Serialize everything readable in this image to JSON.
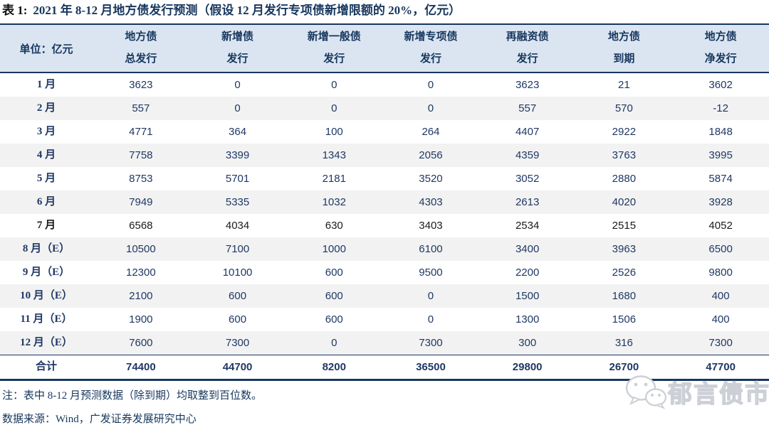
{
  "title": {
    "prefix": "表 1:",
    "text": "2021 年 8-12 月地方债发行预测（假设 12 月发行专项债新增限额的 20%，亿元）"
  },
  "table": {
    "unit_label": "单位：亿元",
    "columns": [
      {
        "line1": "地方债",
        "line2": "总发行"
      },
      {
        "line1": "新增债",
        "line2": "发行"
      },
      {
        "line1": "新增一般债",
        "line2": "发行"
      },
      {
        "line1": "新增专项债",
        "line2": "发行"
      },
      {
        "line1": "再融资债",
        "line2": "发行"
      },
      {
        "line1": "地方债",
        "line2": "到期"
      },
      {
        "line1": "地方债",
        "line2": "净发行"
      }
    ],
    "rows": [
      {
        "month": "1 月",
        "values": [
          "3623",
          "0",
          "0",
          "0",
          "3623",
          "21",
          "3602"
        ]
      },
      {
        "month": "2 月",
        "values": [
          "557",
          "0",
          "0",
          "0",
          "557",
          "570",
          "-12"
        ]
      },
      {
        "month": "3 月",
        "values": [
          "4771",
          "364",
          "100",
          "264",
          "4407",
          "2922",
          "1848"
        ]
      },
      {
        "month": "4 月",
        "values": [
          "7758",
          "3399",
          "1343",
          "2056",
          "4359",
          "3763",
          "3995"
        ]
      },
      {
        "month": "5 月",
        "values": [
          "8753",
          "5701",
          "2181",
          "3520",
          "3052",
          "2880",
          "5874"
        ]
      },
      {
        "month": "6 月",
        "values": [
          "7949",
          "5335",
          "1032",
          "4303",
          "2613",
          "4020",
          "3928"
        ]
      },
      {
        "month": "7 月",
        "values": [
          "6568",
          "4034",
          "630",
          "3403",
          "2534",
          "2515",
          "4052"
        ],
        "text_color": "black"
      },
      {
        "month": "8 月（E）",
        "values": [
          "10500",
          "7100",
          "1000",
          "6100",
          "3400",
          "3963",
          "6500"
        ]
      },
      {
        "month": "9 月（E）",
        "values": [
          "12300",
          "10100",
          "600",
          "9500",
          "2200",
          "2526",
          "9800"
        ]
      },
      {
        "month": "10 月（E）",
        "values": [
          "2100",
          "600",
          "600",
          "0",
          "1500",
          "1680",
          "400"
        ]
      },
      {
        "month": "11 月（E）",
        "values": [
          "1900",
          "600",
          "600",
          "0",
          "1300",
          "1506",
          "400"
        ]
      },
      {
        "month": "12 月（E）",
        "values": [
          "7600",
          "7300",
          "0",
          "7300",
          "300",
          "316",
          "7300"
        ]
      },
      {
        "month": "合计",
        "values": [
          "74400",
          "44700",
          "8200",
          "36500",
          "29800",
          "26700",
          "47700"
        ],
        "is_total": true
      }
    ]
  },
  "notes": {
    "note": "注：表中 8-12 月预测数据（除到期）均取整到百位数。",
    "source": "数据来源：Wind，广发证券发展研究中心"
  },
  "watermark": {
    "icon": "wechat-icon",
    "text": "郁言债市"
  },
  "colors": {
    "navy_text": "#1F3864",
    "border_navy": "#17375E",
    "header_bg": "#DBE5F1",
    "stripe_bg": "#F2F2F2",
    "july_row_text": "#1a1a1a",
    "watermark_gray": "#ccd0d6"
  }
}
